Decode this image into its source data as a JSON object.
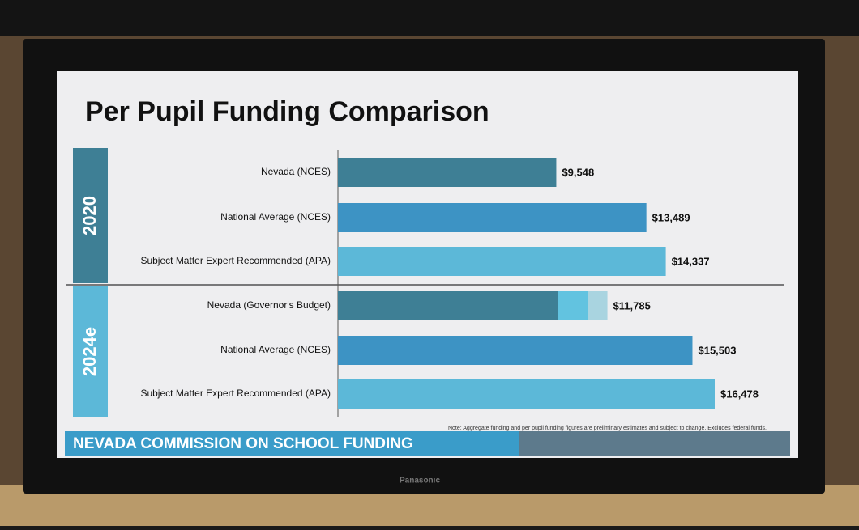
{
  "chart_data": {
    "type": "bar",
    "title": "Per Pupil Funding Comparison",
    "groups": [
      {
        "label": "2020",
        "color": "#3e7f95",
        "categories": [
          "Nevada (NCES)",
          "National Average (NCES)",
          "Subject Matter Expert Recommended (APA)"
        ],
        "values": [
          9548,
          13489,
          14337
        ],
        "value_labels": [
          "$9,548",
          "$13,489",
          "$14,337"
        ],
        "colors": [
          "#3e7f95",
          "#3d93c4",
          "#5cb8d8"
        ]
      },
      {
        "label": "2024e",
        "color": "#5cb8d8",
        "categories": [
          "Nevada (Governor's Budget)",
          "National Average (NCES)",
          "Subject Matter Expert Recommended (APA)"
        ],
        "values": [
          11785,
          15503,
          16478
        ],
        "value_labels": [
          "$11,785",
          "$15,503",
          "$16,478"
        ],
        "colors": [
          "#3e7f95",
          "#3d93c4",
          "#5cb8d8"
        ],
        "segments": [
          9620,
          1304,
          861
        ],
        "segment_colors": [
          "#3e7f95",
          "#62c3e0",
          "#a9d4e0"
        ]
      }
    ],
    "note": "Note: Aggregate funding and per pupil funding figures are preliminary estimates and subject to change. Excludes federal funds."
  },
  "banner": "NEVADA COMMISSION ON SCHOOL FUNDING",
  "brand": "Panasonic"
}
